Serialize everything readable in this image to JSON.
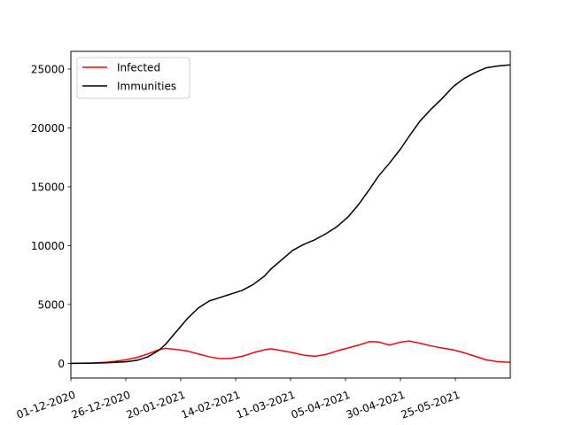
{
  "chart_data": {
    "type": "line",
    "title": "",
    "xlabel": "",
    "ylabel": "",
    "x_start": "2020-12-01",
    "x_end": "2021-06-19",
    "ylim": [
      -1250,
      26500
    ],
    "y_ticks": [
      0,
      5000,
      10000,
      15000,
      20000,
      25000
    ],
    "x_ticks": [
      {
        "date": "2020-12-01",
        "label": "01-12-2020"
      },
      {
        "date": "2020-12-26",
        "label": "26-12-2020"
      },
      {
        "date": "2021-01-20",
        "label": "20-01-2021"
      },
      {
        "date": "2021-02-14",
        "label": "14-02-2021"
      },
      {
        "date": "2021-03-11",
        "label": "11-03-2021"
      },
      {
        "date": "2021-04-05",
        "label": "05-04-2021"
      },
      {
        "date": "2021-04-30",
        "label": "30-04-2021"
      },
      {
        "date": "2021-05-25",
        "label": "25-05-2021"
      }
    ],
    "grid": false,
    "legend_position": "top-left",
    "series": [
      {
        "name": "Infected",
        "color": "#ff0000",
        "points": [
          [
            "2020-12-01",
            0
          ],
          [
            "2020-12-06",
            10
          ],
          [
            "2020-12-11",
            30
          ],
          [
            "2020-12-16",
            80
          ],
          [
            "2020-12-21",
            170
          ],
          [
            "2020-12-26",
            300
          ],
          [
            "2020-12-31",
            500
          ],
          [
            "2021-01-05",
            800
          ],
          [
            "2021-01-10",
            1150
          ],
          [
            "2021-01-13",
            1280
          ],
          [
            "2021-01-18",
            1180
          ],
          [
            "2021-01-23",
            1050
          ],
          [
            "2021-01-28",
            800
          ],
          [
            "2021-02-02",
            550
          ],
          [
            "2021-02-07",
            400
          ],
          [
            "2021-02-12",
            420
          ],
          [
            "2021-02-17",
            600
          ],
          [
            "2021-02-22",
            900
          ],
          [
            "2021-02-27",
            1150
          ],
          [
            "2021-03-02",
            1230
          ],
          [
            "2021-03-07",
            1080
          ],
          [
            "2021-03-12",
            900
          ],
          [
            "2021-03-17",
            700
          ],
          [
            "2021-03-22",
            600
          ],
          [
            "2021-03-27",
            750
          ],
          [
            "2021-04-01",
            1050
          ],
          [
            "2021-04-06",
            1300
          ],
          [
            "2021-04-11",
            1550
          ],
          [
            "2021-04-16",
            1850
          ],
          [
            "2021-04-20",
            1820
          ],
          [
            "2021-04-25",
            1550
          ],
          [
            "2021-04-30",
            1800
          ],
          [
            "2021-05-04",
            1900
          ],
          [
            "2021-05-09",
            1700
          ],
          [
            "2021-05-14",
            1480
          ],
          [
            "2021-05-19",
            1300
          ],
          [
            "2021-05-24",
            1150
          ],
          [
            "2021-05-29",
            900
          ],
          [
            "2021-06-03",
            600
          ],
          [
            "2021-06-08",
            300
          ],
          [
            "2021-06-13",
            150
          ],
          [
            "2021-06-19",
            80
          ]
        ]
      },
      {
        "name": "Immunities",
        "color": "#000000",
        "points": [
          [
            "2020-12-01",
            0
          ],
          [
            "2020-12-06",
            5
          ],
          [
            "2020-12-11",
            15
          ],
          [
            "2020-12-16",
            40
          ],
          [
            "2020-12-21",
            80
          ],
          [
            "2020-12-26",
            130
          ],
          [
            "2020-12-31",
            250
          ],
          [
            "2021-01-05",
            550
          ],
          [
            "2021-01-10",
            1100
          ],
          [
            "2021-01-13",
            1600
          ],
          [
            "2021-01-18",
            2700
          ],
          [
            "2021-01-23",
            3800
          ],
          [
            "2021-01-28",
            4700
          ],
          [
            "2021-02-02",
            5300
          ],
          [
            "2021-02-07",
            5600
          ],
          [
            "2021-02-12",
            5900
          ],
          [
            "2021-02-17",
            6200
          ],
          [
            "2021-02-22",
            6700
          ],
          [
            "2021-02-27",
            7400
          ],
          [
            "2021-03-02",
            8000
          ],
          [
            "2021-03-07",
            8800
          ],
          [
            "2021-03-12",
            9600
          ],
          [
            "2021-03-17",
            10100
          ],
          [
            "2021-03-22",
            10500
          ],
          [
            "2021-03-27",
            11000
          ],
          [
            "2021-04-01",
            11600
          ],
          [
            "2021-04-06",
            12400
          ],
          [
            "2021-04-11",
            13500
          ],
          [
            "2021-04-16",
            14800
          ],
          [
            "2021-04-20",
            15900
          ],
          [
            "2021-04-25",
            17000
          ],
          [
            "2021-04-30",
            18200
          ],
          [
            "2021-05-04",
            19300
          ],
          [
            "2021-05-09",
            20600
          ],
          [
            "2021-05-14",
            21600
          ],
          [
            "2021-05-19",
            22500
          ],
          [
            "2021-05-24",
            23500
          ],
          [
            "2021-05-29",
            24200
          ],
          [
            "2021-06-03",
            24700
          ],
          [
            "2021-06-08",
            25100
          ],
          [
            "2021-06-13",
            25250
          ],
          [
            "2021-06-19",
            25350
          ]
        ]
      }
    ]
  }
}
